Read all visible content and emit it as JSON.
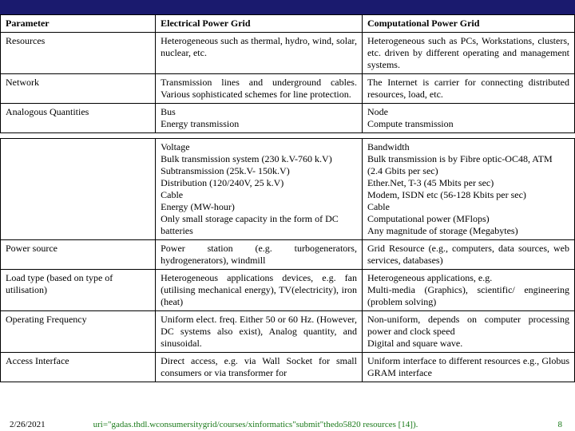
{
  "top_bar_color": "#1a1a6e",
  "table1": {
    "headers": [
      "Parameter",
      "Electrical Power Grid",
      "Computational Power Grid"
    ],
    "rows": [
      {
        "param": "Resources",
        "elec": "Heterogeneous such as thermal, hydro, wind, solar, nuclear, etc.",
        "comp": "Heterogeneous such as PCs, Workstations, clusters, etc. driven by different operating and management systems."
      },
      {
        "param": "Network",
        "elec": "Transmission lines and underground cables. Various sophisticated schemes for line protection.",
        "comp": "The Internet is carrier for connecting distributed resources, load, etc."
      },
      {
        "param": "Analogous Quantities",
        "elec": "Bus\nEnergy transmission",
        "comp": "Node\nCompute transmission"
      }
    ]
  },
  "table2": {
    "rows": [
      {
        "param": "",
        "elec": "Voltage\nBulk transmission system (230 k.V-760 k.V)\nSubtransmission (25k.V- 150k.V)\nDistribution (120/240V, 25 k.V)\nCable\nEnergy (MW-hour)\nOnly small storage capacity in the form of DC batteries",
        "comp": "Bandwidth\nBulk transmission is by Fibre optic-OC48, ATM (2.4 Gbits per sec)\nEther.Net, T-3 (45 Mbits per sec)\nModem, ISDN etc (56-128 Kbits per sec)\nCable\nComputational power (MFlops)\nAny magnitude of storage (Megabytes)"
      },
      {
        "param": "Power source",
        "elec": "Power station (e.g. turbogenerators, hydrogenerators), windmill",
        "comp": "Grid Resource (e.g., computers, data sources, web services, databases)"
      },
      {
        "param": "Load type (based on type of utilisation)",
        "elec": "Heterogeneous applications devices, e.g. fan (utilising mechanical energy), TV(electricity), iron (heat)",
        "comp": "Heterogeneous applications, e.g.\nMulti-media (Graphics), scientific/ engineering (problem solving)"
      },
      {
        "param": "Operating Frequency",
        "elec": "Uniform elect. freq. Either 50 or 60 Hz. (However, DC systems also exist), Analog quantity, and sinusoidal.",
        "comp": "Non-uniform, depends on computer processing power and clock speed\nDigital and square wave."
      },
      {
        "param": "Access Interface",
        "elec": "Direct access, e.g. via Wall Socket for small consumers or via transformer for",
        "comp": "Uniform interface to different resources e.g., Globus GRAM interface"
      }
    ]
  },
  "footer": {
    "date": "2/26/2021",
    "uri": "uri=\"gadas.thdl.wconsumersitygrid/courses/xinformatics\"submit\"thedo5820 resources [14]).",
    "page": "8"
  }
}
